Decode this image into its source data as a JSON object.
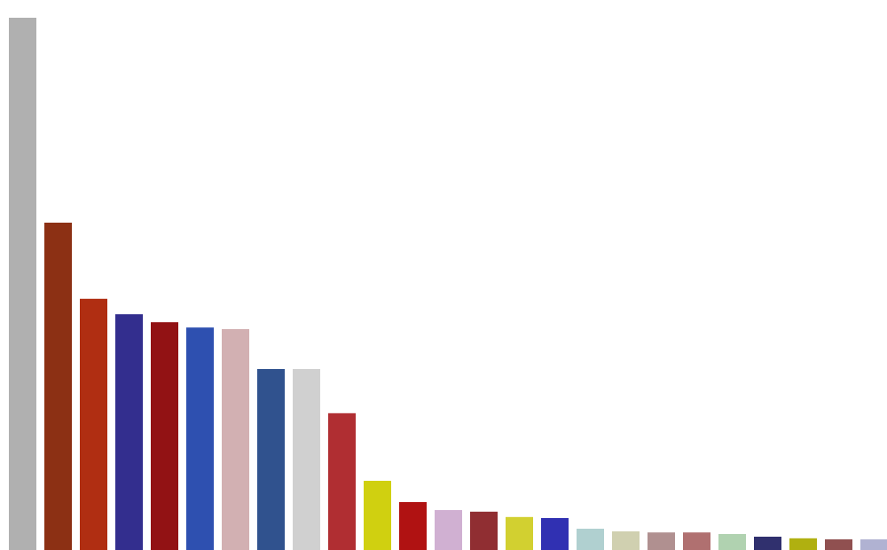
{
  "chart_data": {
    "type": "bar",
    "title": "",
    "xlabel": "",
    "ylabel": "",
    "ylim": [
      0,
      100
    ],
    "grid": false,
    "legend": "none",
    "values": [
      100,
      61.5,
      47.2,
      44.3,
      42.8,
      41.8,
      41.5,
      34.0,
      34.0,
      25.7,
      13.0,
      9.0,
      7.5,
      7.2,
      6.2,
      6.0,
      4.0,
      3.5,
      3.3,
      3.3,
      3.0,
      2.5,
      2.2,
      2.0,
      2.0
    ],
    "colors": [
      "#b0b0b0",
      "#8c3014",
      "#b02e12",
      "#332e8e",
      "#921214",
      "#2e50b0",
      "#d2b0b2",
      "#30528e",
      "#d0d0d0",
      "#b02e32",
      "#d0d010",
      "#b01212",
      "#d0b0d2",
      "#902e32",
      "#d2d030",
      "#3030b2",
      "#b0d0d0",
      "#d0d0b0",
      "#b09090",
      "#b07070",
      "#b0d2b0",
      "#30306e",
      "#b0b010",
      "#905050",
      "#b0b2d2"
    ]
  }
}
